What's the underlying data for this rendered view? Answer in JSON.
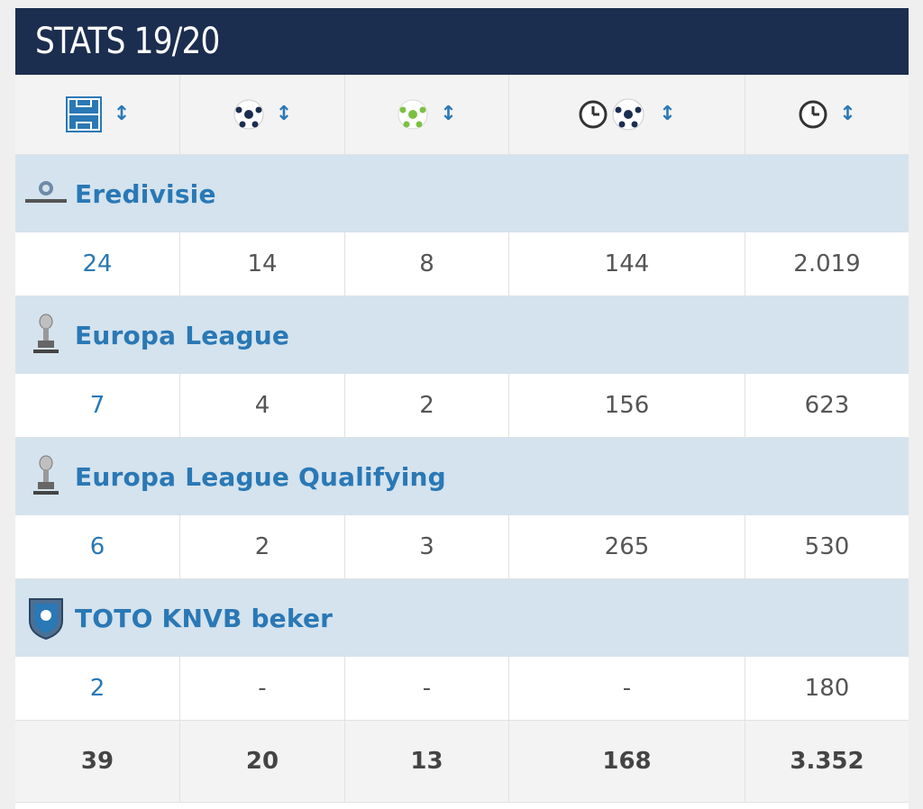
{
  "title": "STATS 19/20",
  "columns": [
    {
      "icon": "pitch-appearances-icon"
    },
    {
      "icon": "ball-goals-icon"
    },
    {
      "icon": "green-ball-assists-icon"
    },
    {
      "icon": "clock-ball-minutes-per-goal-icon"
    },
    {
      "icon": "clock-minutes-played-icon"
    }
  ],
  "sort_glyph": "↕",
  "competitions": [
    {
      "name": "Eredivisie",
      "logo": "eredivisie-logo",
      "values": [
        "24",
        "14",
        "8",
        "144",
        "2.019"
      ]
    },
    {
      "name": "Europa League",
      "logo": "europa-league-trophy-logo",
      "values": [
        "7",
        "4",
        "2",
        "156",
        "623"
      ]
    },
    {
      "name": "Europa League Qualifying",
      "logo": "europa-league-trophy-logo",
      "values": [
        "6",
        "2",
        "3",
        "265",
        "530"
      ]
    },
    {
      "name": "TOTO KNVB beker",
      "logo": "knvb-shield-logo",
      "values": [
        "2",
        "-",
        "-",
        "-",
        "180"
      ]
    }
  ],
  "totals": [
    "39",
    "20",
    "13",
    "168",
    "3.352"
  ],
  "colors": {
    "header_bg": "#1c2e4f",
    "link_blue": "#2a78b5",
    "competition_bg": "#d4e3ee",
    "assist_green": "#7cc142"
  }
}
